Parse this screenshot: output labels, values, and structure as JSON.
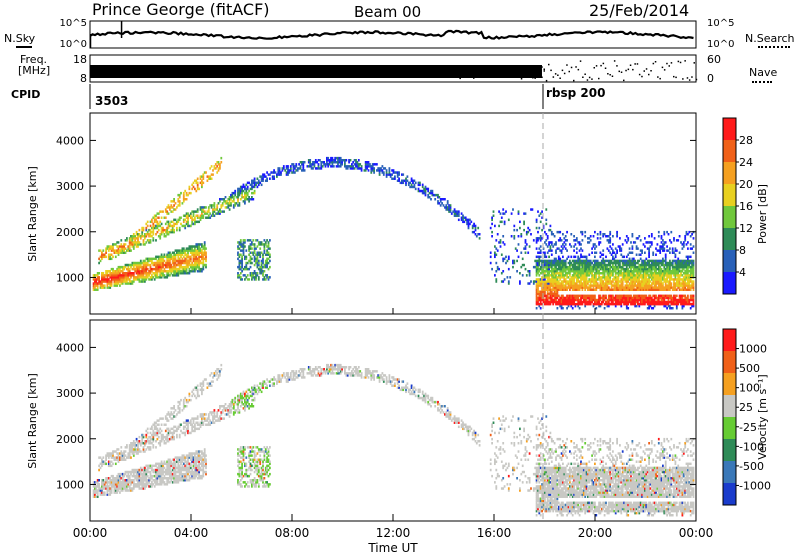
{
  "header": {
    "station": "Prince George (fitACF)",
    "beam": "Beam 00",
    "date": "25/Feb/2014"
  },
  "top_panels": {
    "nsky_label": "N.Sky",
    "nsearch_label": "N.Search",
    "nsky_ticks": [
      "10^5",
      "10^0"
    ],
    "nsearch_ticks": [
      "10^5",
      "10^0"
    ],
    "freq_label_line1": "Freq.",
    "freq_label_line2": "[MHz]",
    "freq_ticks": [
      "18",
      "8"
    ],
    "nave_label": "Nave",
    "nave_ticks": [
      "60",
      "0"
    ],
    "cpid_label": "CPID",
    "cpid_values": [
      {
        "text": "3503",
        "start_hour": 0
      },
      {
        "text": "rbsp  200",
        "start_hour": 18
      }
    ]
  },
  "chart_data": [
    {
      "type": "heatmap",
      "name": "power",
      "ylabel": "Slant Range [km]",
      "yticks": [
        "1000",
        "2000",
        "3000",
        "4000"
      ],
      "ylim": [
        200,
        4600
      ],
      "xlim": [
        0,
        24
      ],
      "colorbar": {
        "label": "Power [dB]",
        "ticks": [
          "4",
          "8",
          "12",
          "16",
          "20",
          "24",
          "28"
        ],
        "colors": [
          "#1a1aff",
          "#2860b8",
          "#2e8b57",
          "#70c83c",
          "#e8d020",
          "#f5a020",
          "#f06018",
          "#ff1a1a"
        ]
      }
    },
    {
      "type": "heatmap",
      "name": "velocity",
      "ylabel": "Slant Range [km]",
      "yticks": [
        "1000",
        "2000",
        "3000",
        "4000"
      ],
      "ylim": [
        200,
        4600
      ],
      "xlim": [
        0,
        24
      ],
      "colorbar": {
        "label": "Velocity [m s⁻¹]",
        "ticks": [
          "1000",
          "500",
          "100",
          "25",
          "-25",
          "-100",
          "-500",
          "-1000"
        ],
        "colors": [
          "#1a3ccc",
          "#3a78b8",
          "#2e8b57",
          "#66cc33",
          "#c8c8c4",
          "#f5a020",
          "#f06018",
          "#ff1a1a"
        ]
      }
    }
  ],
  "x_axis": {
    "label": "Time UT",
    "ticks": [
      "00:00",
      "04:00",
      "08:00",
      "12:00",
      "16:00",
      "20:00",
      "00:00"
    ]
  }
}
